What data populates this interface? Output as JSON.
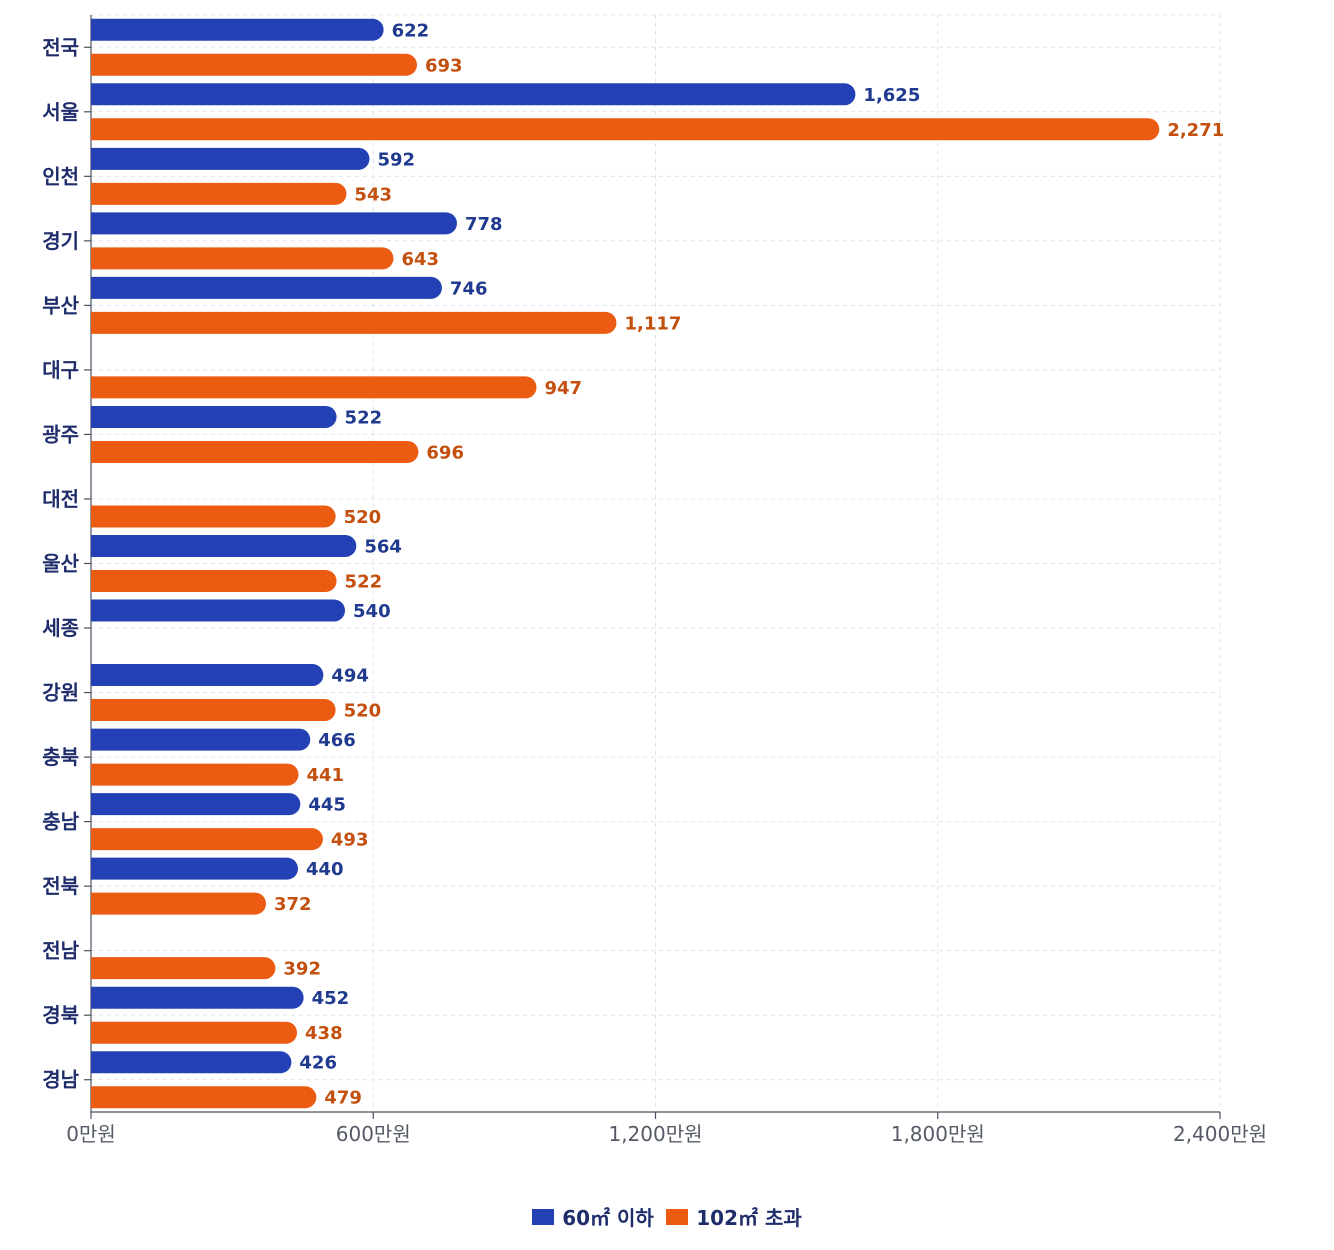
{
  "chart_data": {
    "type": "bar",
    "orientation": "horizontal",
    "categories": [
      "전국",
      "서울",
      "인천",
      "경기",
      "부산",
      "대구",
      "광주",
      "대전",
      "울산",
      "세종",
      "강원",
      "충북",
      "충남",
      "전북",
      "전남",
      "경북",
      "경남"
    ],
    "series": [
      {
        "name": "60㎡ 이하",
        "color": "#2340b5",
        "label_color": "#1f3a8f",
        "values": [
          622,
          1625,
          592,
          778,
          746,
          null,
          522,
          null,
          564,
          540,
          494,
          466,
          445,
          440,
          null,
          452,
          426
        ],
        "value_labels": [
          "622",
          "1,625",
          "592",
          "778",
          "746",
          null,
          "522",
          null,
          "564",
          "540",
          "494",
          "466",
          "445",
          "440",
          null,
          "452",
          "426"
        ]
      },
      {
        "name": "102㎡ 초과",
        "color": "#ec5b12",
        "label_color": "#c4500f",
        "values": [
          693,
          2271,
          543,
          643,
          1117,
          947,
          696,
          520,
          522,
          null,
          520,
          441,
          493,
          372,
          392,
          438,
          479
        ],
        "value_labels": [
          "693",
          "2,271",
          "543",
          "643",
          "1,117",
          "947",
          "696",
          "520",
          "522",
          null,
          "520",
          "441",
          "493",
          "372",
          "392",
          "438",
          "479"
        ]
      }
    ],
    "xlim": [
      0,
      2400
    ],
    "x_ticks": [
      0,
      600,
      1200,
      1800,
      2400
    ],
    "x_tick_labels": [
      "0만원",
      "600만원",
      "1,200만원",
      "1,800만원",
      "2,400만원"
    ],
    "grid": true,
    "legend_position": "bottom-center"
  },
  "legend": {
    "items": [
      {
        "label": "60㎡ 이하",
        "color": "#2340b5"
      },
      {
        "label": "102㎡ 초과",
        "color": "#ec5b12"
      }
    ]
  }
}
